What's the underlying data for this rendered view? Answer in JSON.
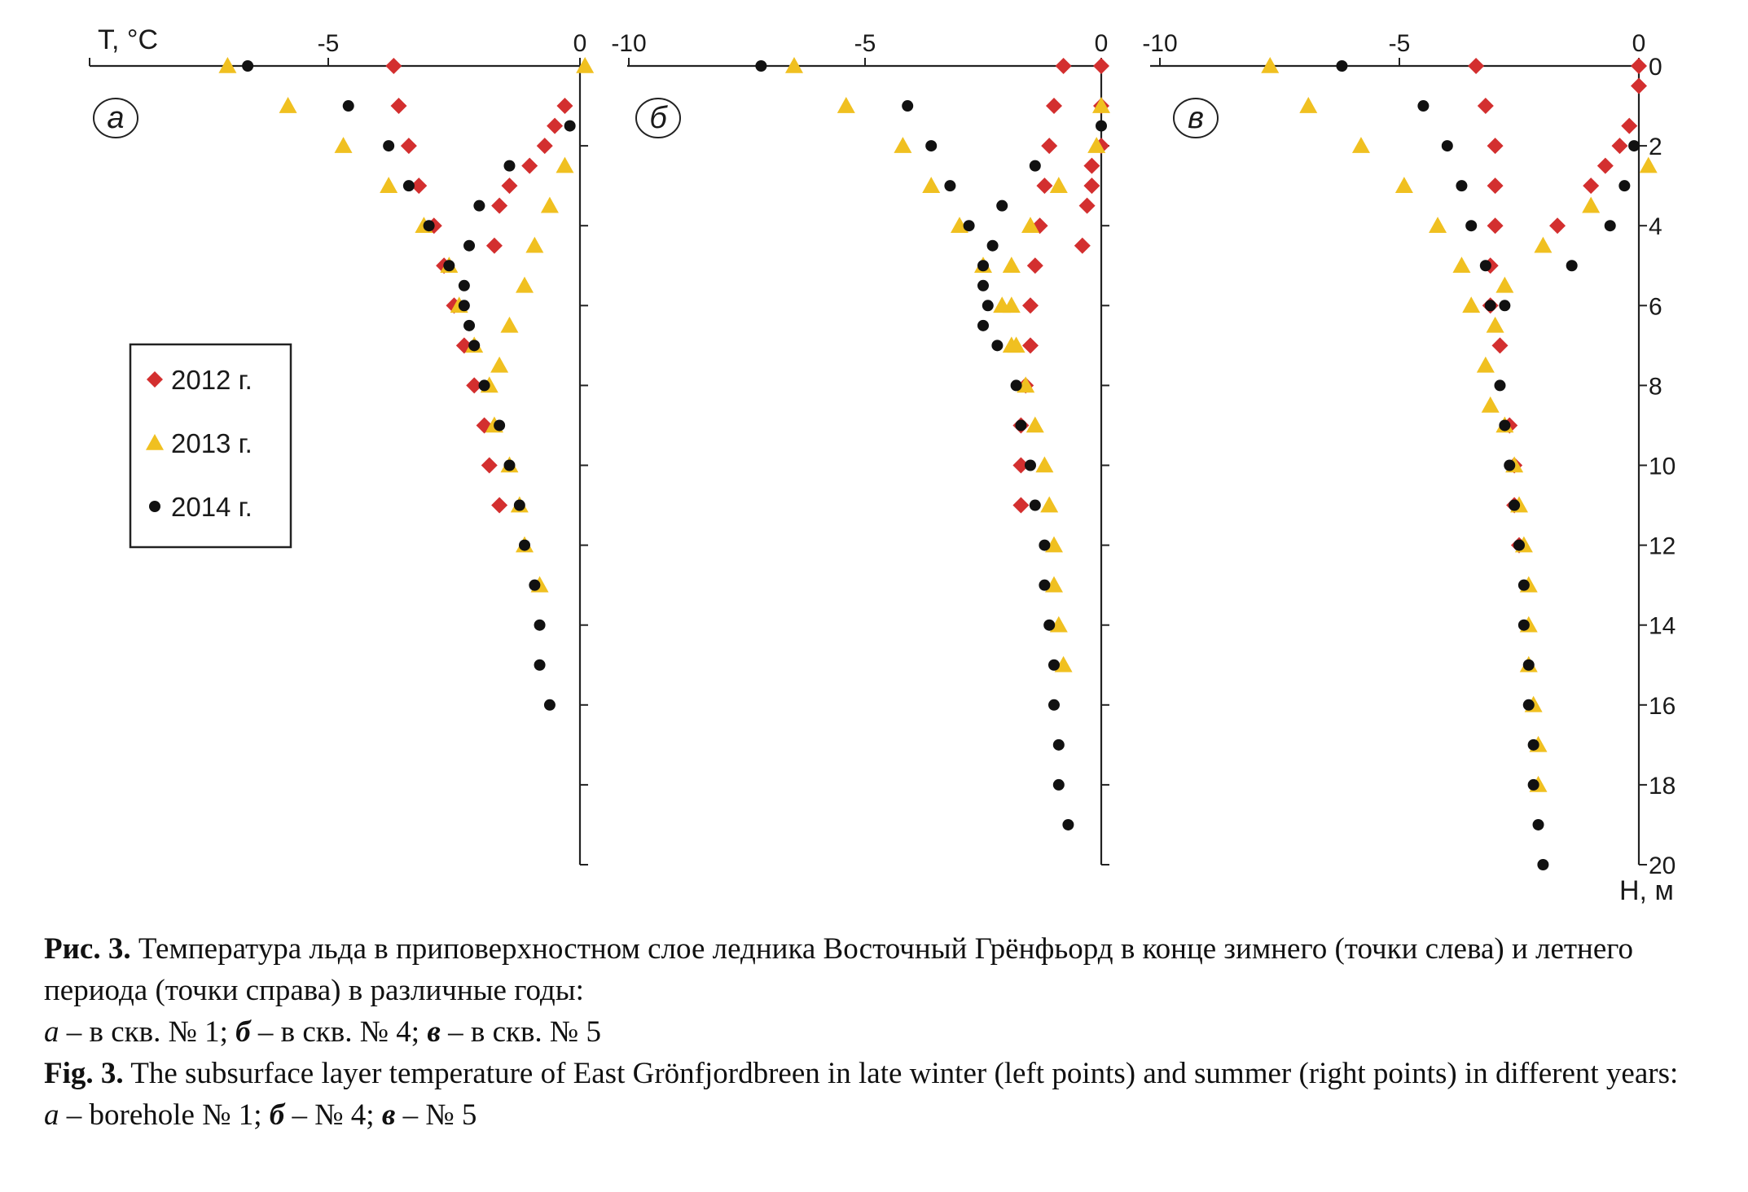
{
  "chart_data": {
    "type": "scatter",
    "x_axis_label": "T, °C",
    "y_axis_label": "H, м",
    "y_ticks": [
      "0",
      "2",
      "4",
      "6",
      "8",
      "10",
      "12",
      "14",
      "16",
      "18",
      "20"
    ],
    "legend": [
      {
        "name": "2012 г.",
        "marker": "diamond",
        "color": "#d32f2f"
      },
      {
        "name": "2013 г.",
        "marker": "triangle",
        "color": "#f0c020"
      },
      {
        "name": "2014 г.",
        "marker": "circle",
        "color": "#111111"
      }
    ],
    "legend_placement": "left-middle of panel a",
    "panels": [
      {
        "letter": "а",
        "xlim": [
          -10,
          0
        ],
        "x_ticks": [
          "-5",
          "0"
        ],
        "ylim": [
          0,
          20
        ],
        "series": [
          {
            "name": "2012 г.",
            "points": [
              [
                -3.7,
                0
              ],
              [
                -3.6,
                1
              ],
              [
                -3.4,
                2
              ],
              [
                -3.2,
                3
              ],
              [
                -2.9,
                4
              ],
              [
                -2.7,
                5
              ],
              [
                -2.5,
                6
              ],
              [
                -2.3,
                7
              ],
              [
                -2.1,
                8
              ],
              [
                -1.9,
                9
              ],
              [
                -1.8,
                10
              ],
              [
                -1.6,
                11
              ],
              [
                -0.3,
                1
              ],
              [
                -0.5,
                1.5
              ],
              [
                -0.7,
                2
              ],
              [
                -1.0,
                2.5
              ],
              [
                -1.4,
                3
              ],
              [
                -1.6,
                3.5
              ],
              [
                -1.7,
                4.5
              ]
            ]
          },
          {
            "name": "2013 г.",
            "points": [
              [
                -7.0,
                0
              ],
              [
                -5.8,
                1
              ],
              [
                -4.7,
                2
              ],
              [
                -3.8,
                3
              ],
              [
                -3.1,
                4
              ],
              [
                -2.6,
                5
              ],
              [
                -2.4,
                6
              ],
              [
                -2.1,
                7
              ],
              [
                -1.8,
                8
              ],
              [
                -1.7,
                9
              ],
              [
                -1.4,
                10
              ],
              [
                -1.2,
                11
              ],
              [
                -1.1,
                12
              ],
              [
                -0.8,
                13
              ],
              [
                0.1,
                0
              ],
              [
                -0.3,
                2.5
              ],
              [
                -0.6,
                3.5
              ],
              [
                -0.9,
                4.5
              ],
              [
                -1.1,
                5.5
              ],
              [
                -1.4,
                6.5
              ],
              [
                -1.6,
                7.5
              ]
            ]
          },
          {
            "name": "2014 г.",
            "points": [
              [
                -6.6,
                0
              ],
              [
                -4.6,
                1
              ],
              [
                -3.8,
                2
              ],
              [
                -3.4,
                3
              ],
              [
                -3.0,
                4
              ],
              [
                -2.6,
                5
              ],
              [
                -2.3,
                6
              ],
              [
                -2.1,
                7
              ],
              [
                -1.9,
                8
              ],
              [
                -1.6,
                9
              ],
              [
                -1.4,
                10
              ],
              [
                -1.2,
                11
              ],
              [
                -1.1,
                12
              ],
              [
                -0.9,
                13
              ],
              [
                -0.8,
                14
              ],
              [
                -0.8,
                15
              ],
              [
                -0.6,
                16
              ],
              [
                -0.2,
                1.5
              ],
              [
                -1.4,
                2.5
              ],
              [
                -2.0,
                3.5
              ],
              [
                -2.2,
                4.5
              ],
              [
                -2.3,
                5.5
              ],
              [
                -2.2,
                6.5
              ]
            ]
          }
        ]
      },
      {
        "letter": "б",
        "xlim": [
          -10,
          0
        ],
        "x_ticks": [
          "-10",
          "-5",
          "0"
        ],
        "ylim": [
          0,
          20
        ],
        "series": [
          {
            "name": "2012 г.",
            "points": [
              [
                -0.8,
                0
              ],
              [
                -1.0,
                1
              ],
              [
                -1.1,
                2
              ],
              [
                -1.2,
                3
              ],
              [
                -1.3,
                4
              ],
              [
                -1.4,
                5
              ],
              [
                -1.5,
                6
              ],
              [
                -1.5,
                7
              ],
              [
                -1.6,
                8
              ],
              [
                -1.7,
                9
              ],
              [
                -1.7,
                10
              ],
              [
                -1.7,
                11
              ],
              [
                0,
                0
              ],
              [
                0,
                1
              ],
              [
                0,
                2
              ],
              [
                -0.2,
                2.5
              ],
              [
                -0.2,
                3
              ],
              [
                -0.3,
                3.5
              ],
              [
                -0.4,
                4.5
              ]
            ]
          },
          {
            "name": "2013 г.",
            "points": [
              [
                -6.5,
                0
              ],
              [
                -5.4,
                1
              ],
              [
                -4.2,
                2
              ],
              [
                -3.6,
                3
              ],
              [
                -3.0,
                4
              ],
              [
                -2.5,
                5
              ],
              [
                -2.1,
                6
              ],
              [
                -1.9,
                7
              ],
              [
                -1.6,
                8
              ],
              [
                -1.4,
                9
              ],
              [
                -1.2,
                10
              ],
              [
                -1.1,
                11
              ],
              [
                -1.0,
                12
              ],
              [
                -1.0,
                13
              ],
              [
                -0.9,
                14
              ],
              [
                -0.8,
                15
              ],
              [
                0,
                1
              ],
              [
                -0.1,
                2
              ],
              [
                -0.9,
                3
              ],
              [
                -1.5,
                4
              ],
              [
                -1.9,
                5
              ],
              [
                -1.9,
                6
              ],
              [
                -1.8,
                7
              ]
            ]
          },
          {
            "name": "2014 г.",
            "points": [
              [
                -7.2,
                0
              ],
              [
                -4.1,
                1
              ],
              [
                -3.6,
                2
              ],
              [
                -3.2,
                3
              ],
              [
                -2.8,
                4
              ],
              [
                -2.5,
                5
              ],
              [
                -2.5,
                5.5
              ],
              [
                -2.4,
                6
              ],
              [
                -2.5,
                6.5
              ],
              [
                -2.2,
                7
              ],
              [
                -1.8,
                8
              ],
              [
                -1.7,
                9
              ],
              [
                -1.5,
                10
              ],
              [
                -1.4,
                11
              ],
              [
                -1.2,
                12
              ],
              [
                -1.2,
                13
              ],
              [
                -1.1,
                14
              ],
              [
                -1.0,
                15
              ],
              [
                -1.0,
                16
              ],
              [
                -0.9,
                17
              ],
              [
                -0.9,
                18
              ],
              [
                -0.7,
                19
              ],
              [
                0,
                1.5
              ],
              [
                -1.4,
                2.5
              ],
              [
                -2.1,
                3.5
              ],
              [
                -2.3,
                4.5
              ]
            ]
          }
        ]
      },
      {
        "letter": "в",
        "xlim": [
          -10,
          0
        ],
        "x_ticks": [
          "-10",
          "-5",
          "0"
        ],
        "ylim": [
          0,
          20
        ],
        "series": [
          {
            "name": "2012 г.",
            "points": [
              [
                -3.4,
                0
              ],
              [
                -3.2,
                1
              ],
              [
                -3.0,
                2
              ],
              [
                -3.0,
                3
              ],
              [
                -3.0,
                4
              ],
              [
                -3.1,
                5
              ],
              [
                -3.1,
                6
              ],
              [
                -2.9,
                7
              ],
              [
                -2.7,
                9
              ],
              [
                -2.6,
                10
              ],
              [
                -2.6,
                11
              ],
              [
                -2.5,
                12
              ],
              [
                0,
                0
              ],
              [
                0,
                0.5
              ],
              [
                -0.2,
                1.5
              ],
              [
                -0.4,
                2
              ],
              [
                -0.7,
                2.5
              ],
              [
                -1.0,
                3
              ],
              [
                -1.7,
                4
              ]
            ]
          },
          {
            "name": "2013 г.",
            "points": [
              [
                -7.7,
                0
              ],
              [
                -6.9,
                1
              ],
              [
                -5.8,
                2
              ],
              [
                -4.9,
                3
              ],
              [
                -4.2,
                4
              ],
              [
                -3.7,
                5
              ],
              [
                -3.5,
                6
              ],
              [
                -3.0,
                6.5
              ],
              [
                -3.2,
                7.5
              ],
              [
                -3.1,
                8.5
              ],
              [
                -2.8,
                9
              ],
              [
                -2.6,
                10
              ],
              [
                -2.5,
                11
              ],
              [
                -2.4,
                12
              ],
              [
                -2.3,
                13
              ],
              [
                -2.3,
                14
              ],
              [
                -2.3,
                15
              ],
              [
                -2.2,
                16
              ],
              [
                -2.1,
                17
              ],
              [
                -2.1,
                18
              ],
              [
                0.2,
                2.5
              ],
              [
                -1.0,
                3.5
              ],
              [
                -2.0,
                4.5
              ],
              [
                -2.8,
                5.5
              ]
            ]
          },
          {
            "name": "2014 г.",
            "points": [
              [
                -6.2,
                0
              ],
              [
                -4.5,
                1
              ],
              [
                -4.0,
                2
              ],
              [
                -3.7,
                3
              ],
              [
                -3.5,
                4
              ],
              [
                -3.2,
                5
              ],
              [
                -3.1,
                6
              ],
              [
                -2.9,
                8
              ],
              [
                -2.8,
                9
              ],
              [
                -2.7,
                10
              ],
              [
                -2.6,
                11
              ],
              [
                -2.5,
                12
              ],
              [
                -2.4,
                13
              ],
              [
                -2.4,
                14
              ],
              [
                -2.3,
                15
              ],
              [
                -2.3,
                16
              ],
              [
                -2.2,
                17
              ],
              [
                -2.2,
                18
              ],
              [
                -2.1,
                19
              ],
              [
                -2.0,
                20
              ],
              [
                -0.1,
                2
              ],
              [
                -0.3,
                3
              ],
              [
                -0.6,
                4
              ],
              [
                -1.4,
                5
              ],
              [
                -2.8,
                6
              ]
            ]
          }
        ]
      }
    ]
  },
  "caption": {
    "ru_label": "Рис. 3.",
    "ru_text": "Температура льда в приповерхностном слое ледника Восточный Грёнфьорд в конце зимнего (точки слева) и летнего периода (точки справа) в различные годы:",
    "ru_a": "а",
    "ru_a_text": " – в скв. № 1; ",
    "ru_b": "б",
    "ru_b_text": " – в скв. № 4; ",
    "ru_c": "в",
    "ru_c_text": " – в скв. № 5",
    "en_label": "Fig.  3.",
    "en_text": "The subsurface layer temperature of East Grönfjordbreen in late winter (left points) and summer (right points) in different years:",
    "en_a": "a",
    "en_a_text": " – borehole № 1; ",
    "en_b": "б",
    "en_b_text": " – № 4; ",
    "en_c": "в",
    "en_c_text": " – № 5"
  }
}
